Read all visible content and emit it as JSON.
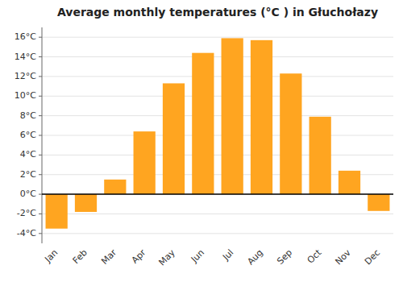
{
  "chart_data": {
    "type": "bar",
    "title": "Average monthly temperatures (°C ) in Głuchołazy",
    "categories": [
      "Jan",
      "Feb",
      "Mar",
      "Apr",
      "May",
      "Jun",
      "Jul",
      "Aug",
      "Sep",
      "Oct",
      "Nov",
      "Dec"
    ],
    "values": [
      -3.5,
      -1.8,
      1.5,
      6.4,
      11.3,
      14.4,
      15.9,
      15.7,
      12.3,
      7.9,
      2.4,
      -1.7
    ],
    "color": "#FFA520",
    "ylim": [
      -5,
      17
    ],
    "yticks": [
      {
        "value": -4,
        "label": "-4°C"
      },
      {
        "value": -2,
        "label": "-2°C"
      },
      {
        "value": 0,
        "label": "0°C"
      },
      {
        "value": 2,
        "label": "2°C"
      },
      {
        "value": 4,
        "label": "4°C"
      },
      {
        "value": 6,
        "label": "6°C"
      },
      {
        "value": 8,
        "label": "8°C"
      },
      {
        "value": 10,
        "label": "10°C"
      },
      {
        "value": 12,
        "label": "12°C"
      },
      {
        "value": 14,
        "label": "14°C"
      },
      {
        "value": 16,
        "label": "16°C"
      }
    ],
    "grid": true
  }
}
